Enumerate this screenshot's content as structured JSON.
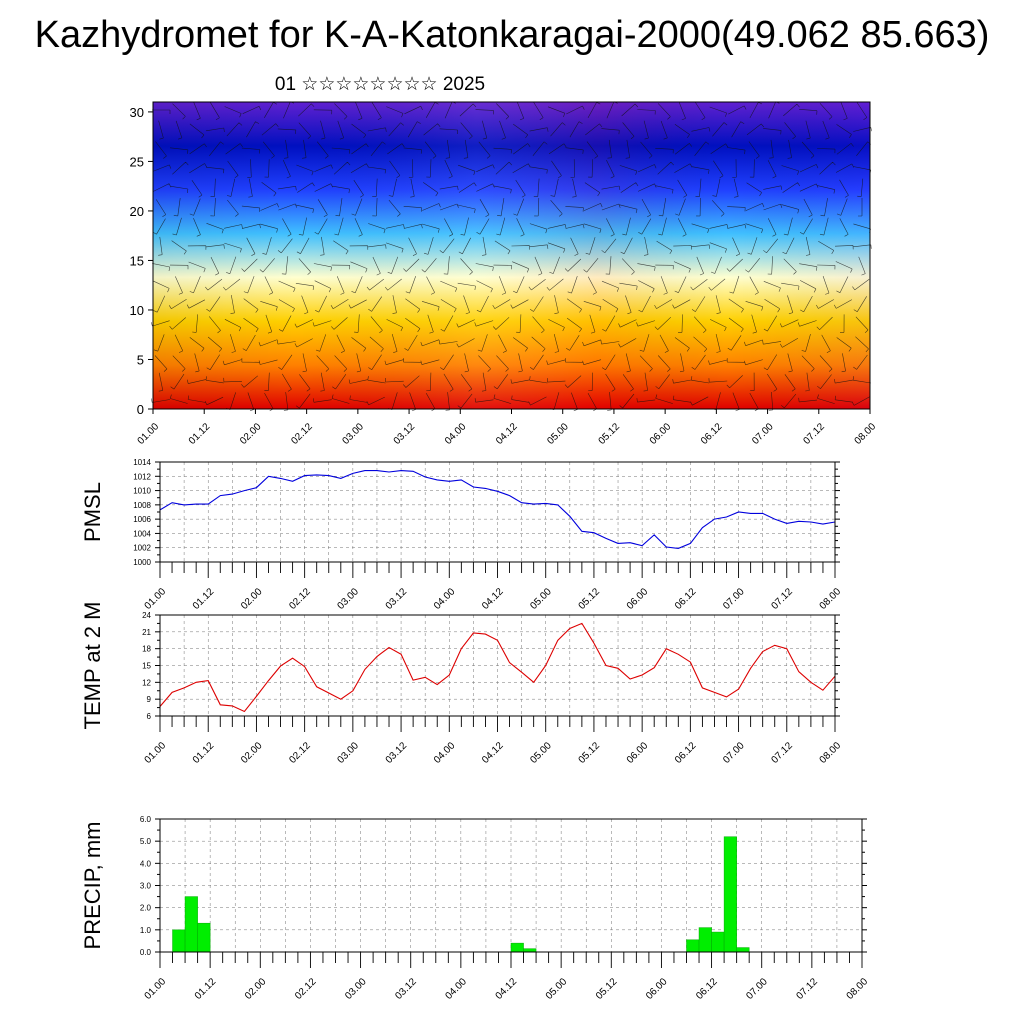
{
  "header": {
    "title": "Kazhydromet for K-A-Katonkaragai-2000(49.062 85.663)",
    "subtitle": "01 ☆☆☆☆☆☆☆☆ 2025"
  },
  "chart_data": [
    {
      "type": "heatmap",
      "title": "",
      "ylim": [
        0,
        31
      ],
      "yticks": [
        0,
        5,
        10,
        15,
        20,
        25,
        30
      ],
      "xticks": [
        "01.00",
        "01.12",
        "02.00",
        "02.12",
        "03.00",
        "03.12",
        "04.00",
        "04.12",
        "05.00",
        "05.12",
        "06.00",
        "06.12",
        "07.00",
        "07.12",
        "08.00"
      ],
      "overlay": "wind barbs",
      "colors": [
        "#e00000",
        "#ff8000",
        "#ffd000",
        "#ffffd0",
        "#40c0ff",
        "#2040ff",
        "#0010c0",
        "#6020d0"
      ]
    },
    {
      "type": "line",
      "ylabel": "PMSL",
      "ylim": [
        1000,
        1014
      ],
      "yticks": [
        1000,
        1002,
        1004,
        1006,
        1008,
        1010,
        1012,
        1014
      ],
      "xticks": [
        "01.00",
        "01.12",
        "02.00",
        "02.12",
        "03.00",
        "03.12",
        "04.00",
        "04.12",
        "05.00",
        "05.12",
        "06.00",
        "06.12",
        "07.00",
        "07.12",
        "08.00"
      ],
      "color": "#0000dd",
      "x": [
        0,
        3,
        6,
        9,
        12,
        15,
        18,
        21,
        24,
        27,
        30,
        33,
        36,
        39,
        42,
        45,
        48,
        51,
        54,
        57,
        60,
        63,
        66,
        69,
        72,
        75,
        78,
        81,
        84,
        87,
        90,
        93,
        96,
        99,
        102,
        105,
        108,
        111,
        114,
        117,
        120,
        123,
        126,
        129,
        132,
        135,
        138,
        141,
        144,
        147,
        150,
        153,
        156,
        159,
        162,
        165,
        168
      ],
      "values": [
        1007.3,
        1008.3,
        1008.0,
        1008.1,
        1008.1,
        1009.3,
        1009.5,
        1010.0,
        1010.4,
        1012.0,
        1011.7,
        1011.3,
        1012.1,
        1012.2,
        1012.1,
        1011.7,
        1012.4,
        1012.8,
        1012.8,
        1012.6,
        1012.8,
        1012.7,
        1011.9,
        1011.5,
        1011.3,
        1011.5,
        1010.5,
        1010.3,
        1009.9,
        1009.3,
        1008.3,
        1008.1,
        1008.2,
        1008.0,
        1006.4,
        1004.3,
        1004.1,
        1003.3,
        1002.6,
        1002.7,
        1002.3,
        1003.8,
        1002.1,
        1001.9,
        1002.6,
        1004.8,
        1006.0,
        1006.3,
        1007.0,
        1006.8,
        1006.8,
        1006.0,
        1005.4,
        1005.7,
        1005.6,
        1005.3,
        1005.6
      ]
    },
    {
      "type": "line",
      "ylabel": "TEMP at 2 M",
      "ylim": [
        6,
        24
      ],
      "yticks": [
        6,
        9,
        12,
        15,
        18,
        21,
        24
      ],
      "xticks": [
        "01.00",
        "01.12",
        "02.00",
        "02.12",
        "03.00",
        "03.12",
        "04.00",
        "04.12",
        "05.00",
        "05.12",
        "06.00",
        "06.12",
        "07.00",
        "07.12",
        "08.00"
      ],
      "color": "#dd0000",
      "x": [
        0,
        3,
        6,
        9,
        12,
        15,
        18,
        21,
        24,
        27,
        30,
        33,
        36,
        39,
        42,
        45,
        48,
        51,
        54,
        57,
        60,
        63,
        66,
        69,
        72,
        75,
        78,
        81,
        84,
        87,
        90,
        93,
        96,
        99,
        102,
        105,
        108,
        111,
        114,
        117,
        120,
        123,
        126,
        129,
        132,
        135,
        138,
        141,
        144,
        147,
        150,
        153,
        156,
        159,
        162,
        165,
        168
      ],
      "values": [
        7.7,
        10.2,
        11.0,
        12.0,
        12.3,
        8.0,
        7.8,
        6.8,
        9.5,
        12.3,
        14.9,
        16.3,
        14.8,
        11.2,
        10.1,
        9.0,
        10.5,
        14.3,
        16.6,
        18.2,
        17.0,
        12.4,
        12.9,
        11.6,
        13.3,
        18.0,
        20.8,
        20.6,
        19.5,
        15.5,
        13.8,
        12.0,
        15.0,
        19.5,
        21.6,
        22.5,
        19.0,
        15.0,
        14.5,
        12.6,
        13.3,
        14.6,
        18.0,
        17.0,
        15.6,
        11.0,
        10.2,
        9.4,
        10.8,
        14.5,
        17.5,
        18.6,
        18.0,
        13.9,
        12.0,
        10.6,
        13.1
      ]
    },
    {
      "type": "bar",
      "ylabel": "PRECIP, mm",
      "ylim": [
        0,
        6
      ],
      "yticks": [
        "0.0",
        "1.0",
        "2.0",
        "3.0",
        "4.0",
        "5.0",
        "6.0"
      ],
      "xticks": [
        "01.00",
        "01.12",
        "02.00",
        "02.12",
        "03.00",
        "03.12",
        "04.00",
        "04.12",
        "05.00",
        "05.12",
        "06.00",
        "06.12",
        "07.00",
        "07.12",
        "08.00"
      ],
      "color": "#00ee00",
      "x": [
        0,
        3,
        6,
        9,
        12,
        15,
        18,
        21,
        24,
        27,
        30,
        33,
        36,
        39,
        42,
        45,
        48,
        51,
        54,
        57,
        60,
        63,
        66,
        69,
        72,
        75,
        78,
        81,
        84,
        87,
        90,
        93,
        96,
        99,
        102,
        105,
        108,
        111,
        114,
        117,
        120,
        123,
        126,
        129,
        132,
        135,
        138,
        141,
        144,
        147,
        150,
        153,
        156,
        159,
        162,
        165
      ],
      "values": [
        0,
        1.0,
        2.5,
        1.3,
        0,
        0,
        0,
        0,
        0,
        0,
        0,
        0,
        0,
        0,
        0,
        0,
        0,
        0,
        0,
        0,
        0,
        0,
        0,
        0,
        0,
        0,
        0,
        0,
        0.4,
        0.15,
        0,
        0,
        0,
        0,
        0,
        0,
        0,
        0,
        0,
        0,
        0,
        0,
        0.55,
        1.1,
        0.9,
        5.2,
        0.2,
        0,
        0,
        0,
        0,
        0,
        0,
        0,
        0,
        0
      ]
    }
  ]
}
